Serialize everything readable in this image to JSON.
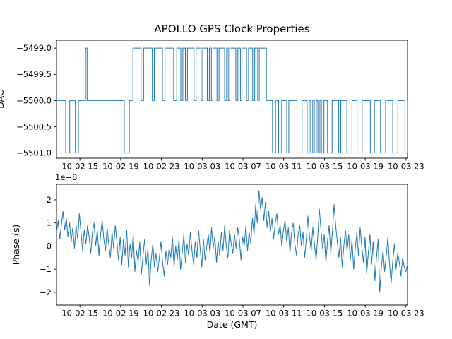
{
  "figure": {
    "title": "APOLLO GPS Clock Properties",
    "xlabel": "Date (GMT)",
    "background": "#ffffff",
    "line_color": "#1f77b4",
    "spine_color": "#000000"
  },
  "chart_data": [
    {
      "type": "line",
      "subtype": "step",
      "title": "APOLLO GPS Clock Properties",
      "ylabel": "DAC",
      "ylabel_clipped": true,
      "legend": "none",
      "grid": false,
      "xlim_hours": [
        -0.3,
        34.15
      ],
      "ylim": [
        -5501.1,
        -5498.85
      ],
      "yticks": [
        -5499.0,
        -5499.5,
        -5500.0,
        -5500.5,
        -5501.0
      ],
      "ytick_labels": [
        "−5499.0",
        "−5499.5",
        "−5500.0",
        "−5500.5",
        "−5501.0"
      ],
      "xticks_hours": [
        2,
        6,
        10,
        14,
        18,
        22,
        26,
        30,
        34
      ],
      "xtick_labels": [
        "10-02 15",
        "10-02 19",
        "10-02 23",
        "10-03 03",
        "10-03 07",
        "10-03 11",
        "10-03 15",
        "10-03 19",
        "10-03 23"
      ],
      "steps": [
        [
          -0.3,
          -5500
        ],
        [
          0.6,
          -5501
        ],
        [
          1.0,
          -5500
        ],
        [
          1.55,
          -5501
        ],
        [
          1.85,
          -5500
        ],
        [
          2.55,
          -5499
        ],
        [
          2.7,
          -5500
        ],
        [
          6.35,
          -5501
        ],
        [
          6.85,
          -5500
        ],
        [
          7.2,
          -5499
        ],
        [
          8.0,
          -5500
        ],
        [
          8.25,
          -5499
        ],
        [
          9.1,
          -5500
        ],
        [
          9.3,
          -5499
        ],
        [
          10.1,
          -5500
        ],
        [
          10.35,
          -5499
        ],
        [
          11.2,
          -5500
        ],
        [
          11.5,
          -5499
        ],
        [
          11.9,
          -5500
        ],
        [
          12.1,
          -5499
        ],
        [
          12.35,
          -5500
        ],
        [
          12.55,
          -5499
        ],
        [
          13.2,
          -5500
        ],
        [
          13.4,
          -5499
        ],
        [
          13.9,
          -5500
        ],
        [
          14.05,
          -5499
        ],
        [
          14.5,
          -5500
        ],
        [
          14.7,
          -5499
        ],
        [
          14.9,
          -5500
        ],
        [
          15.05,
          -5499
        ],
        [
          15.45,
          -5500
        ],
        [
          15.65,
          -5499
        ],
        [
          16.2,
          -5500
        ],
        [
          16.4,
          -5499
        ],
        [
          16.55,
          -5500
        ],
        [
          16.7,
          -5499
        ],
        [
          17.3,
          -5500
        ],
        [
          17.5,
          -5499
        ],
        [
          17.75,
          -5500
        ],
        [
          17.9,
          -5499
        ],
        [
          18.35,
          -5500
        ],
        [
          18.55,
          -5499
        ],
        [
          18.95,
          -5500
        ],
        [
          19.15,
          -5499
        ],
        [
          19.45,
          -5500
        ],
        [
          19.6,
          -5499
        ],
        [
          20.3,
          -5500
        ],
        [
          20.9,
          -5501
        ],
        [
          21.2,
          -5500
        ],
        [
          21.5,
          -5501
        ],
        [
          21.8,
          -5500
        ],
        [
          22.3,
          -5501
        ],
        [
          22.5,
          -5500
        ],
        [
          23.3,
          -5501
        ],
        [
          23.8,
          -5500
        ],
        [
          24.3,
          -5501
        ],
        [
          24.5,
          -5500
        ],
        [
          24.65,
          -5501
        ],
        [
          24.85,
          -5500
        ],
        [
          25.0,
          -5501
        ],
        [
          25.2,
          -5500
        ],
        [
          25.35,
          -5501
        ],
        [
          25.55,
          -5500
        ],
        [
          25.7,
          -5501
        ],
        [
          25.95,
          -5500
        ],
        [
          26.3,
          -5501
        ],
        [
          26.75,
          -5500
        ],
        [
          27.4,
          -5501
        ],
        [
          27.6,
          -5500
        ],
        [
          28.2,
          -5501
        ],
        [
          28.7,
          -5500
        ],
        [
          29.2,
          -5501
        ],
        [
          29.7,
          -5500
        ],
        [
          30.5,
          -5501
        ],
        [
          30.9,
          -5500
        ],
        [
          31.5,
          -5501
        ],
        [
          32.0,
          -5500
        ],
        [
          32.7,
          -5501
        ],
        [
          33.2,
          -5500
        ],
        [
          33.9,
          -5501
        ],
        [
          34.15,
          -5500
        ]
      ]
    },
    {
      "type": "line",
      "subtype": "noise",
      "ylabel": "Phase (s)",
      "xlabel": "Date (GMT)",
      "offset_text": "1e−8",
      "legend": "none",
      "grid": false,
      "xlim_hours": [
        -0.3,
        34.15
      ],
      "ylim_e8": [
        -2.55,
        2.67
      ],
      "yticks_e8": [
        -2,
        -1,
        0,
        1,
        2
      ],
      "ytick_labels": [
        "−2",
        "−1",
        "0",
        "1",
        "2"
      ],
      "xticks_hours": [
        2,
        6,
        10,
        14,
        18,
        22,
        26,
        30,
        34
      ],
      "xtick_labels": [
        "10-02 15",
        "10-02 19",
        "10-02 23",
        "10-03 03",
        "10-03 07",
        "10-03 11",
        "10-03 15",
        "10-03 19",
        "10-03 23"
      ],
      "x_start_hours": -0.3,
      "x_end_hours": 34.15,
      "values_e8": [
        0.6,
        1.1,
        0.3,
        0.9,
        1.5,
        0.7,
        1.2,
        0.4,
        1.0,
        0.2,
        0.8,
        -0.1,
        0.9,
        0.3,
        1.4,
        0.6,
        -0.2,
        0.7,
        0.1,
        0.9,
        0.4,
        -0.3,
        0.6,
        1.0,
        0.0,
        0.7,
        -0.4,
        0.5,
        1.1,
        0.3,
        -0.2,
        0.8,
        0.1,
        -0.5,
        0.6,
        -0.1,
        0.9,
        0.2,
        -0.6,
        0.4,
        -0.8,
        0.3,
        -0.4,
        0.7,
        -0.9,
        0.1,
        -0.5,
        0.5,
        -1.1,
        -0.2,
        -0.7,
        0.2,
        -1.2,
        -0.4,
        0.3,
        -0.8,
        -0.1,
        -1.7,
        -0.6,
        0.1,
        -0.9,
        -0.3,
        -1.1,
        -0.5,
        0.2,
        -0.7,
        -1.3,
        -0.2,
        -0.8,
        -0.1,
        -0.5,
        0.4,
        -0.9,
        0.0,
        -0.6,
        0.3,
        -1.0,
        -0.3,
        0.5,
        -0.7,
        0.1,
        -0.4,
        0.6,
        -0.2,
        -0.8,
        0.2,
        -0.5,
        0.7,
        -0.1,
        -0.9,
        0.3,
        -0.6,
        0.0,
        0.5,
        -0.3,
        0.8,
        -0.1,
        0.4,
        -0.7,
        0.2,
        -0.4,
        0.6,
        -0.2,
        0.9,
        0.0,
        -0.5,
        0.7,
        0.1,
        -0.3,
        0.5,
        -0.1,
        0.8,
        0.3,
        -0.6,
        0.4,
        0.0,
        0.9,
        -0.2,
        0.6,
        0.1,
        1.2,
        0.5,
        1.8,
        1.0,
        2.4,
        1.6,
        2.1,
        1.1,
        1.9,
        0.8,
        1.5,
        0.6,
        1.2,
        0.3,
        1.0,
        1.4,
        0.5,
        0.9,
        0.0,
        0.7,
        1.1,
        0.2,
        0.8,
        -0.3,
        0.6,
        1.0,
        0.1,
        -0.4,
        0.5,
        0.9,
        0.0,
        0.6,
        -0.5,
        0.3,
        1.3,
        0.4,
        -0.2,
        0.8,
        0.1,
        -0.6,
        0.4,
        1.6,
        0.7,
        -0.1,
        0.5,
        -0.7,
        0.2,
        0.9,
        -0.3,
        0.6,
        1.8,
        0.9,
        0.2,
        -0.5,
        0.4,
        -0.9,
        0.0,
        0.7,
        -0.2,
        0.5,
        -0.6,
        0.3,
        -1.0,
        -0.1,
        0.6,
        -0.4,
        0.8,
        0.0,
        -0.7,
        0.4,
        -1.2,
        -0.3,
        0.5,
        -0.8,
        0.2,
        -1.5,
        -0.5,
        0.3,
        -2.0,
        -0.9,
        -0.2,
        -1.1,
        -0.4,
        0.4,
        -0.8,
        -1.6,
        -0.6,
        0.1,
        -1.0,
        -0.3,
        -0.7,
        -1.3,
        -0.5,
        -0.9,
        -1.1,
        -0.8
      ]
    }
  ]
}
